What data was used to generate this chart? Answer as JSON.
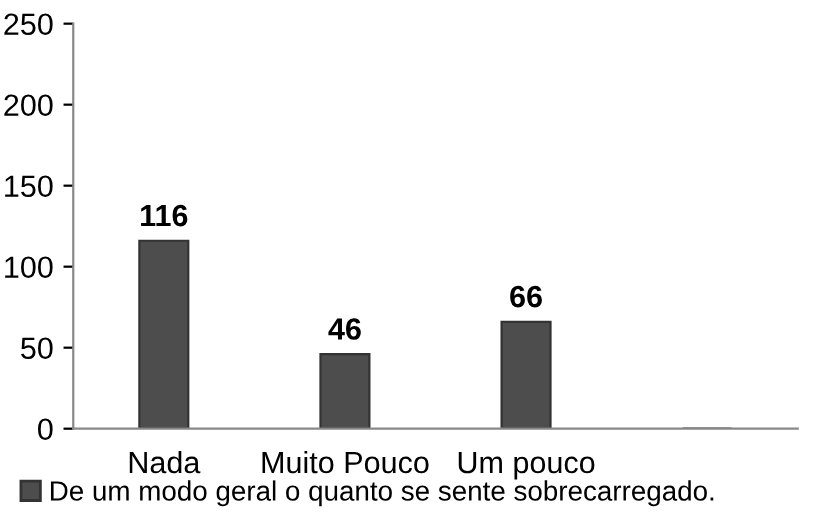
{
  "chart_data": {
    "type": "bar",
    "categories": [
      "Nada",
      "Muito Pouco",
      "Um pouco",
      null
    ],
    "series": [
      {
        "name": "De um modo geral o quanto se sente sobrecarregado.",
        "color": "#4d4d4d",
        "values": [
          116,
          46,
          66,
          null
        ]
      }
    ],
    "ylim": [
      0,
      250
    ],
    "yticks": [
      0,
      50,
      100,
      150,
      200,
      250
    ],
    "data_labels": true,
    "legend": "bottom",
    "grid": false
  }
}
